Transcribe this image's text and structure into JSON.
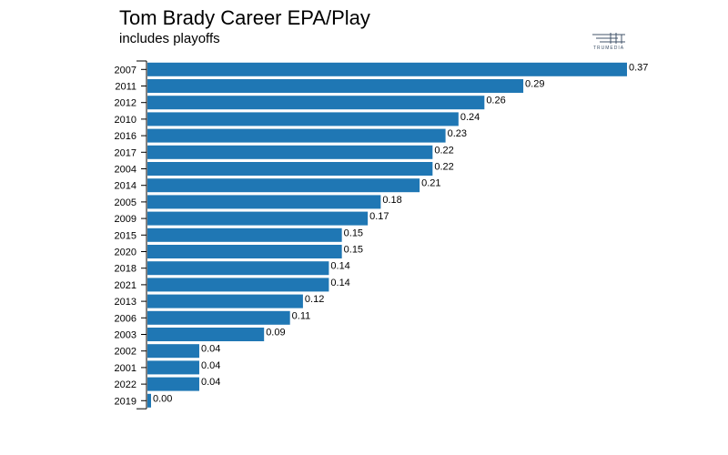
{
  "header": {
    "title": "Tom Brady Career EPA/Play",
    "subtitle": "includes playoffs"
  },
  "logo": {
    "text": "TRUMEDIA",
    "icon": "trumedia-logo-icon",
    "color": "#40536a"
  },
  "chart_data": {
    "type": "bar",
    "orientation": "horizontal",
    "title": "Tom Brady Career EPA/Play",
    "subtitle": "includes playoffs",
    "xlabel": "",
    "ylabel": "",
    "categories": [
      "2007",
      "2011",
      "2012",
      "2010",
      "2016",
      "2017",
      "2004",
      "2014",
      "2005",
      "2009",
      "2015",
      "2020",
      "2018",
      "2021",
      "2013",
      "2006",
      "2003",
      "2002",
      "2001",
      "2022",
      "2019"
    ],
    "values": [
      0.37,
      0.29,
      0.26,
      0.24,
      0.23,
      0.22,
      0.22,
      0.21,
      0.18,
      0.17,
      0.15,
      0.15,
      0.14,
      0.14,
      0.12,
      0.11,
      0.09,
      0.04,
      0.04,
      0.04,
      0.0
    ],
    "data_labels": [
      "0.37",
      "0.29",
      "0.26",
      "0.24",
      "0.23",
      "0.22",
      "0.22",
      "0.21",
      "0.18",
      "0.17",
      "0.15",
      "0.15",
      "0.14",
      "0.14",
      "0.12",
      "0.11",
      "0.09",
      "0.04",
      "0.04",
      "0.04",
      "0.00"
    ],
    "xlim": [
      0,
      0.37
    ],
    "bar_color": "#1f77b4",
    "grid": false,
    "legend": "none"
  }
}
